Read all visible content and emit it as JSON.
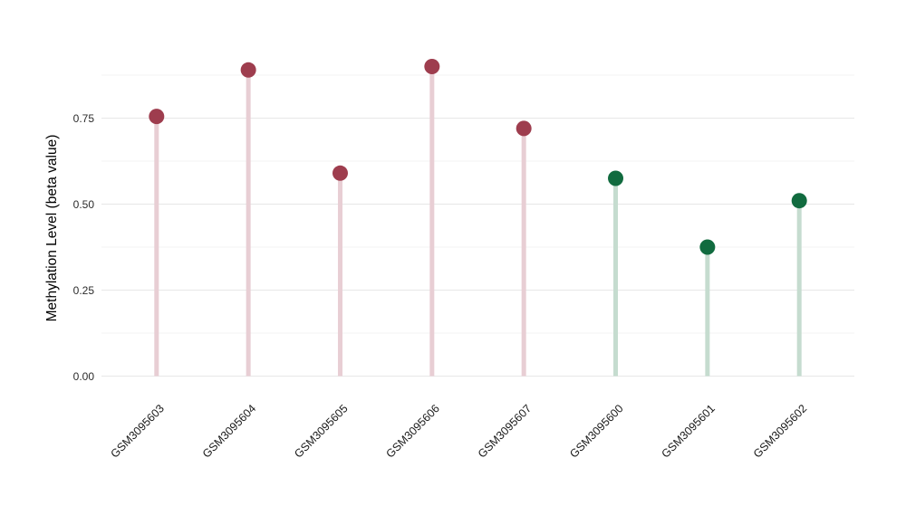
{
  "chart_data": {
    "type": "scatter",
    "variant": "lollipop",
    "title": "",
    "xlabel": "",
    "ylabel": "Methylation Level (beta value)",
    "categories": [
      "GSM3095603",
      "GSM3095604",
      "GSM3095605",
      "GSM3095606",
      "GSM3095607",
      "GSM3095600",
      "GSM3095601",
      "GSM3095602"
    ],
    "values": [
      0.755,
      0.89,
      0.59,
      0.9,
      0.72,
      0.575,
      0.375,
      0.51
    ],
    "groups": [
      "maroon",
      "maroon",
      "maroon",
      "maroon",
      "maroon",
      "green",
      "green",
      "green"
    ],
    "palette": {
      "maroon": {
        "dot": "#9e3d4e",
        "stem": "#e8ced4"
      },
      "green": {
        "dot": "#116b3f",
        "stem": "#c5dccf"
      }
    },
    "yticks": [
      0.0,
      0.25,
      0.5,
      0.75
    ],
    "ytick_labels": [
      "0.00",
      "0.25",
      "0.50",
      "0.75"
    ],
    "minor_gridlines": [
      0.125,
      0.375,
      0.625,
      0.875
    ],
    "ylim": [
      -0.045,
      0.947
    ],
    "grid": true,
    "legend_position": "none",
    "background_color": "#ffffff",
    "grid_major_color": "#e7e7e7",
    "grid_minor_color": "#f3f3f3"
  }
}
